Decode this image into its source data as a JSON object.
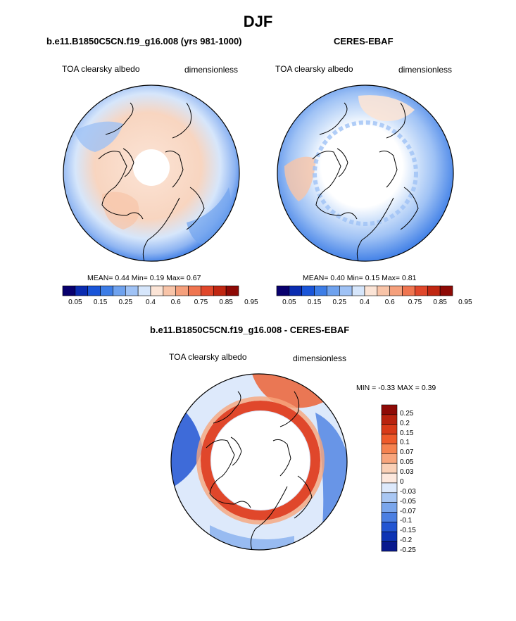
{
  "figure": {
    "season": "DJF"
  },
  "panels": [
    {
      "id": "model",
      "title": "b.e11.B1850C5CN.f19_g16.008 (yrs 981-1000)",
      "variable": "TOA clearsky albedo",
      "units": "dimensionless",
      "stats": {
        "mean_label": "MEAN=",
        "mean": "0.44",
        "min_label": "Min=",
        "min": "0.19",
        "max_label": "Max=",
        "max": "0.67"
      }
    },
    {
      "id": "obs",
      "title": "CERES-EBAF",
      "variable": "TOA clearsky albedo",
      "units": "dimensionless",
      "stats": {
        "mean_label": "MEAN=",
        "mean": "0.40",
        "min_label": "Min=",
        "min": "0.15",
        "max_label": "Max=",
        "max": "0.81"
      }
    },
    {
      "id": "diff",
      "title": "b.e11.B1850C5CN.f19_g16.008 - CERES-EBAF",
      "variable": "TOA clearsky albedo",
      "units": "dimensionless",
      "stats": {
        "min_label": "MIN =",
        "min": "-0.33",
        "max_label": "MAX =",
        "max": "0.39"
      }
    }
  ],
  "colorbar_abs": {
    "colors": [
      "#08006e",
      "#0b2cb0",
      "#1a55d8",
      "#3d7de6",
      "#6fa2ee",
      "#9fc2f5",
      "#d6e6fb",
      "#fbe4d6",
      "#f8c4a8",
      "#f5a07c",
      "#ef7550",
      "#e0472b",
      "#c02712",
      "#8e0a06"
    ],
    "ticks": [
      "0.05",
      "0.15",
      "0.25",
      "0.4",
      "0.6",
      "0.75",
      "0.85",
      "0.95"
    ]
  },
  "colorbar_diff": {
    "colors": [
      "#8e0a06",
      "#b8220e",
      "#d83a18",
      "#ee5a2a",
      "#f5824f",
      "#f8a57c",
      "#fad0b6",
      "#fde8dd",
      "#dde9fb",
      "#a9c7f3",
      "#7aa6ec",
      "#4b7fe2",
      "#2255d2",
      "#0d33b4",
      "#08198e"
    ],
    "ticks": [
      "0.25",
      "0.2",
      "0.15",
      "0.1",
      "0.07",
      "0.05",
      "0.03",
      "0",
      "-0.03",
      "-0.05",
      "-0.07",
      "-0.1",
      "-0.15",
      "-0.2",
      "-0.25"
    ]
  }
}
